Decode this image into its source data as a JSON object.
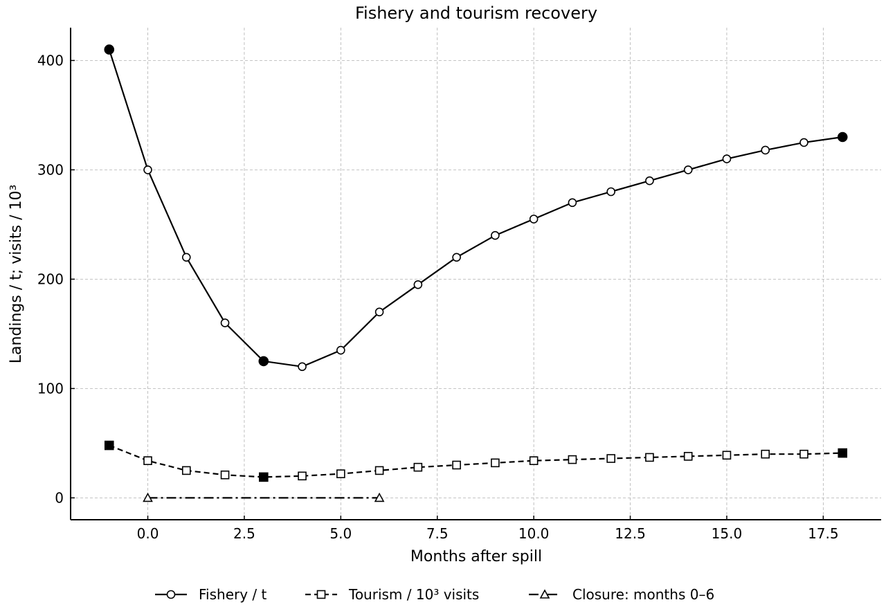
{
  "chart_data": {
    "type": "line",
    "title": "Fishery and tourism recovery",
    "xlabel": "Months after spill",
    "ylabel": "Landings / t; visits / 10³",
    "xlim": [
      -2,
      19
    ],
    "ylim": [
      -20,
      430
    ],
    "x_ticks": [
      "0.0",
      "2.5",
      "5.0",
      "7.5",
      "10.0",
      "12.5",
      "15.0",
      "17.5"
    ],
    "x_tick_values": [
      0,
      2.5,
      5,
      7.5,
      10,
      12.5,
      15,
      17.5
    ],
    "y_ticks": [
      "0",
      "100",
      "200",
      "300",
      "400"
    ],
    "y_tick_values": [
      0,
      100,
      200,
      300,
      400
    ],
    "grid": true,
    "legend_position": "bottom",
    "series": [
      {
        "name": "Fishery / t",
        "marker": "circle",
        "line_style": "solid",
        "x": [
          -1,
          0,
          1,
          2,
          3,
          4,
          5,
          6,
          7,
          8,
          9,
          10,
          11,
          12,
          13,
          14,
          15,
          16,
          17,
          18
        ],
        "y": [
          410,
          300,
          220,
          160,
          125,
          120,
          135,
          170,
          195,
          220,
          240,
          255,
          270,
          280,
          290,
          300,
          310,
          318,
          325,
          330
        ],
        "highlight_x": [
          -1,
          3,
          18
        ]
      },
      {
        "name": "Tourism / 10³ visits",
        "marker": "square",
        "line_style": "dashed",
        "x": [
          -1,
          0,
          1,
          2,
          3,
          4,
          5,
          6,
          7,
          8,
          9,
          10,
          11,
          12,
          13,
          14,
          15,
          16,
          17,
          18
        ],
        "y": [
          48,
          34,
          25,
          21,
          19,
          20,
          22,
          25,
          28,
          30,
          32,
          34,
          35,
          36,
          37,
          38,
          39,
          40,
          40,
          41
        ],
        "highlight_x": [
          -1,
          3,
          18
        ]
      },
      {
        "name": "Closure: months 0–6",
        "marker": "triangle",
        "line_style": "dashdot",
        "x": [
          0,
          6
        ],
        "y": [
          0,
          0
        ],
        "highlight_x": []
      }
    ]
  }
}
